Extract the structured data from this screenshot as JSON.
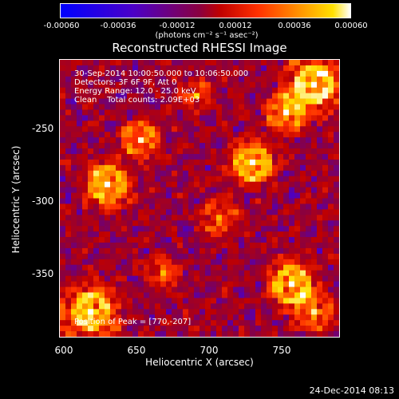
{
  "colorbar": {
    "tick_labels": [
      "-0.00060",
      "-0.00036",
      "-0.00012",
      "0.00012",
      "0.00036",
      "0.00060"
    ],
    "units_label": "(photons cm⁻² s⁻¹ asec⁻²)",
    "colors": [
      "#0000ff",
      "#4b00c8",
      "#8a0040",
      "#c00000",
      "#ff3000",
      "#ff9000",
      "#ffe000",
      "#ffffff"
    ]
  },
  "image": {
    "title": "Reconstructed RHESSI Image",
    "info_lines": [
      "30-Sep-2014 10:00:50.000 to 10:06:50.000",
      "Detectors: 3F 6F 9F, Att 0",
      "Energy Range: 12.0 - 25.0 keV",
      "Clean    Total counts: 2.09E+03"
    ],
    "peak_label": "Position of Peak = [770,-207]"
  },
  "axes": {
    "xlabel": "Heliocentric X (arcsec)",
    "ylabel": "Heliocentric Y (arcsec)",
    "xlim": [
      600,
      785
    ],
    "ylim": [
      -392,
      -207
    ],
    "x_ticks": [
      "600",
      "650",
      "700",
      "750"
    ],
    "y_ticks": [
      "-250",
      "-300",
      "-350"
    ]
  },
  "timestamp": "24-Dec-2014 08:13"
}
